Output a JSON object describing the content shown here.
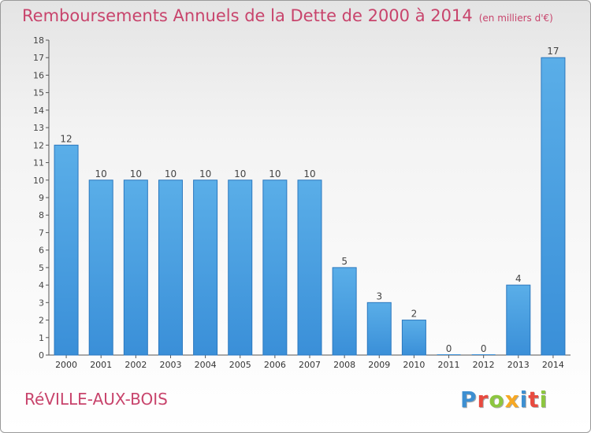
{
  "header": {
    "title": "Remboursements Annuels de la Dette de 2000 à 2014",
    "unit": "(en milliers d'€)"
  },
  "footer": {
    "commune": "RéVILLE-AUX-BOIS",
    "brand": "Proxiti",
    "brand_colors": [
      "#3d8fd1",
      "#e84a3f",
      "#8cc63f",
      "#f7a823",
      "#3d8fd1",
      "#e84a3f",
      "#8cc63f"
    ]
  },
  "chart_data": {
    "type": "bar",
    "title": "Remboursements Annuels de la Dette de 2000 à 2014",
    "xlabel": "",
    "ylabel": "",
    "categories": [
      "2000",
      "2001",
      "2002",
      "2003",
      "2004",
      "2005",
      "2006",
      "2007",
      "2008",
      "2009",
      "2010",
      "2011",
      "2012",
      "2013",
      "2014"
    ],
    "values": [
      12,
      10,
      10,
      10,
      10,
      10,
      10,
      10,
      5,
      3,
      2,
      0,
      0,
      4,
      17
    ],
    "data_labels": [
      "12",
      "10",
      "10",
      "10",
      "10",
      "10",
      "10",
      "10",
      "5",
      "3",
      "2",
      "0",
      "0",
      "4",
      "17"
    ],
    "ylim": [
      0,
      18
    ],
    "yticks": [
      "0",
      "1",
      "2",
      "3",
      "4",
      "5",
      "6",
      "7",
      "8",
      "9",
      "10",
      "11",
      "12",
      "13",
      "14",
      "15",
      "16",
      "17",
      "18"
    ],
    "grid": false,
    "bar_color": "#3a8fd8",
    "bar_color_light": "#5aaee8"
  }
}
